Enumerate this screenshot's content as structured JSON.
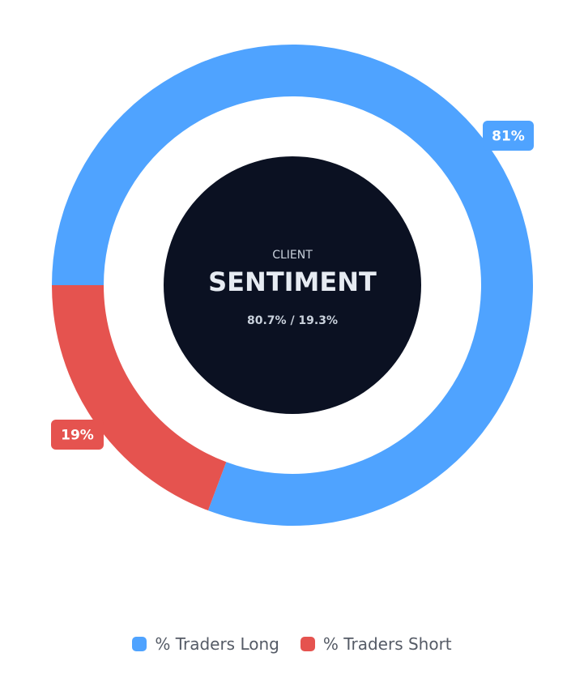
{
  "chart_data": {
    "type": "pie",
    "center": {
      "title": "CLIENT",
      "heading": "SENTIMENT",
      "subtitle": "80.7% / 19.3%"
    },
    "series": [
      {
        "name": "% Traders Long",
        "value": 80.7,
        "label": "81%",
        "color": "#4fa3ff"
      },
      {
        "name": "% Traders Short",
        "value": 19.3,
        "label": "19%",
        "color": "#e5534f"
      }
    ],
    "legend_position": "bottom"
  },
  "colors": {
    "center_fill": "#0b1122"
  }
}
